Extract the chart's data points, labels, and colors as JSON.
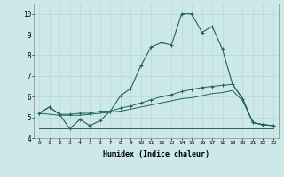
{
  "xlabel": "Humidex (Indice chaleur)",
  "x": [
    0,
    1,
    2,
    3,
    4,
    5,
    6,
    7,
    8,
    9,
    10,
    11,
    12,
    13,
    14,
    15,
    16,
    17,
    18,
    19,
    20,
    21,
    22,
    23
  ],
  "line1": [
    5.2,
    5.5,
    5.15,
    4.45,
    4.9,
    4.6,
    4.85,
    5.3,
    6.05,
    6.4,
    7.5,
    8.4,
    8.6,
    8.5,
    10.0,
    10.0,
    9.1,
    9.4,
    8.3,
    6.6,
    5.9,
    4.75,
    4.65,
    4.6
  ],
  "line2": [
    5.2,
    5.5,
    5.15,
    5.15,
    5.2,
    5.2,
    5.3,
    5.3,
    5.45,
    5.55,
    5.7,
    5.85,
    6.0,
    6.1,
    6.25,
    6.35,
    6.45,
    6.5,
    6.55,
    6.6,
    5.9,
    4.75,
    4.65,
    4.6
  ],
  "line3": [
    5.2,
    5.15,
    5.1,
    5.1,
    5.1,
    5.15,
    5.2,
    5.25,
    5.3,
    5.4,
    5.5,
    5.6,
    5.7,
    5.8,
    5.9,
    5.95,
    6.05,
    6.15,
    6.2,
    6.3,
    5.8,
    4.75,
    4.65,
    4.6
  ],
  "line4": [
    4.45,
    4.45,
    4.45,
    4.45,
    4.45,
    4.45,
    4.45,
    4.45,
    4.45,
    4.45,
    4.45,
    4.45,
    4.45,
    4.45,
    4.45,
    4.45,
    4.45,
    4.45,
    4.45,
    4.45,
    4.45,
    4.45,
    4.45,
    4.45
  ],
  "color": "#206060",
  "bg_color": "#cce8e8",
  "grid_color": "#b8d8d8",
  "ylim": [
    4.0,
    10.5
  ],
  "yticks": [
    4,
    5,
    6,
    7,
    8,
    9,
    10
  ],
  "xlim": [
    -0.5,
    23.5
  ]
}
